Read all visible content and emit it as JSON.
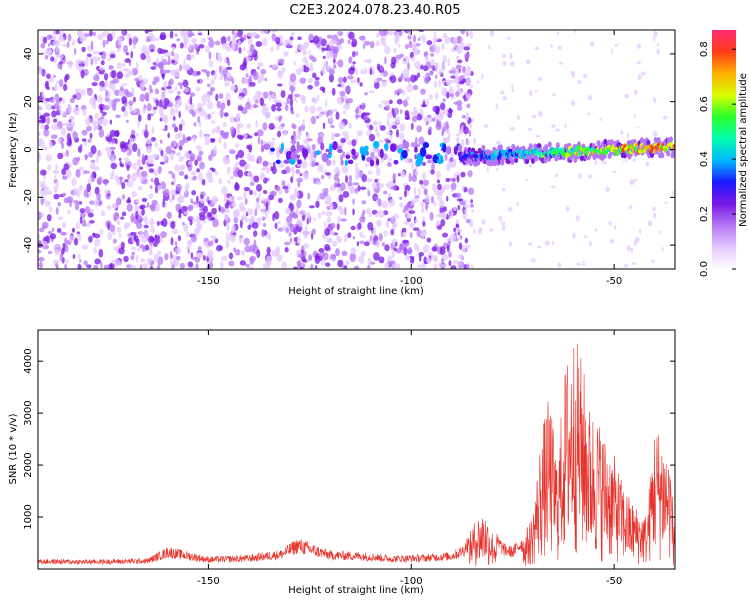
{
  "title": "C2E3.2024.078.23.40.R05",
  "colors": {
    "snr_line": "#e8312a",
    "spectrogram_base": "#7a18e6",
    "colormap": [
      "#ffffff",
      "#e4c8ff",
      "#b577f5",
      "#7a18e6",
      "#1a1aff",
      "#00b8ff",
      "#00ffb0",
      "#28ff28",
      "#d8ff00",
      "#ffb000",
      "#ff3a1a",
      "#ff2a6e"
    ]
  },
  "chart_data": [
    {
      "type": "heatmap",
      "title": "",
      "xlabel": "Height of straight line (km)",
      "ylabel": "Frequency (Hz)",
      "xlim": [
        -192,
        -35
      ],
      "ylim": [
        -50,
        50
      ],
      "x_ticks": [
        -150,
        -100,
        -50
      ],
      "y_ticks": [
        -40,
        -20,
        0,
        20,
        40
      ],
      "colorbar": {
        "label": "Normalized spectral amplitude",
        "range": [
          0,
          0.87
        ],
        "ticks": [
          0.0,
          0.2,
          0.4,
          0.6,
          0.8
        ]
      },
      "regions": [
        {
          "x": [
            -192,
            -88
          ],
          "description": "broadband noise across all frequencies, amplitude ~0.1–0.3"
        },
        {
          "x": [
            -137,
            -88
          ],
          "freq_center": -2,
          "amplitude_max": 0.3
        },
        {
          "x": [
            -88,
            -35
          ],
          "freq_center_start": -3,
          "freq_center_end": 1,
          "amplitude_max": 0.85
        }
      ]
    },
    {
      "type": "line",
      "title": "",
      "xlabel": "Height of straight line (km)",
      "ylabel": "SNR (10 * v/v)",
      "xlim": [
        -192,
        -35
      ],
      "ylim": [
        0,
        4600
      ],
      "x_ticks": [
        -150,
        -100,
        -50
      ],
      "y_ticks": [
        1000,
        2000,
        3000,
        4000
      ],
      "series": [
        {
          "x": [
            -192,
            -180,
            -165,
            -160,
            -150,
            -140,
            -132,
            -128,
            -120,
            -112,
            -105,
            -96,
            -90,
            -87,
            -84,
            -82,
            -80,
            -77,
            -75,
            -72,
            -70,
            -68,
            -66,
            -64,
            -62,
            -60,
            -58,
            -56,
            -54,
            -52,
            -50,
            -48,
            -46,
            -44,
            -42,
            -40,
            -38,
            -36,
            -35
          ],
          "values": [
            170,
            160,
            180,
            380,
            210,
            240,
            330,
            530,
            310,
            290,
            230,
            250,
            290,
            420,
            950,
            1100,
            700,
            430,
            380,
            650,
            1050,
            2500,
            3200,
            2000,
            3800,
            4400,
            3900,
            3000,
            2800,
            2400,
            2100,
            1600,
            1300,
            1100,
            1000,
            2700,
            2500,
            2000,
            400
          ]
        }
      ]
    }
  ]
}
